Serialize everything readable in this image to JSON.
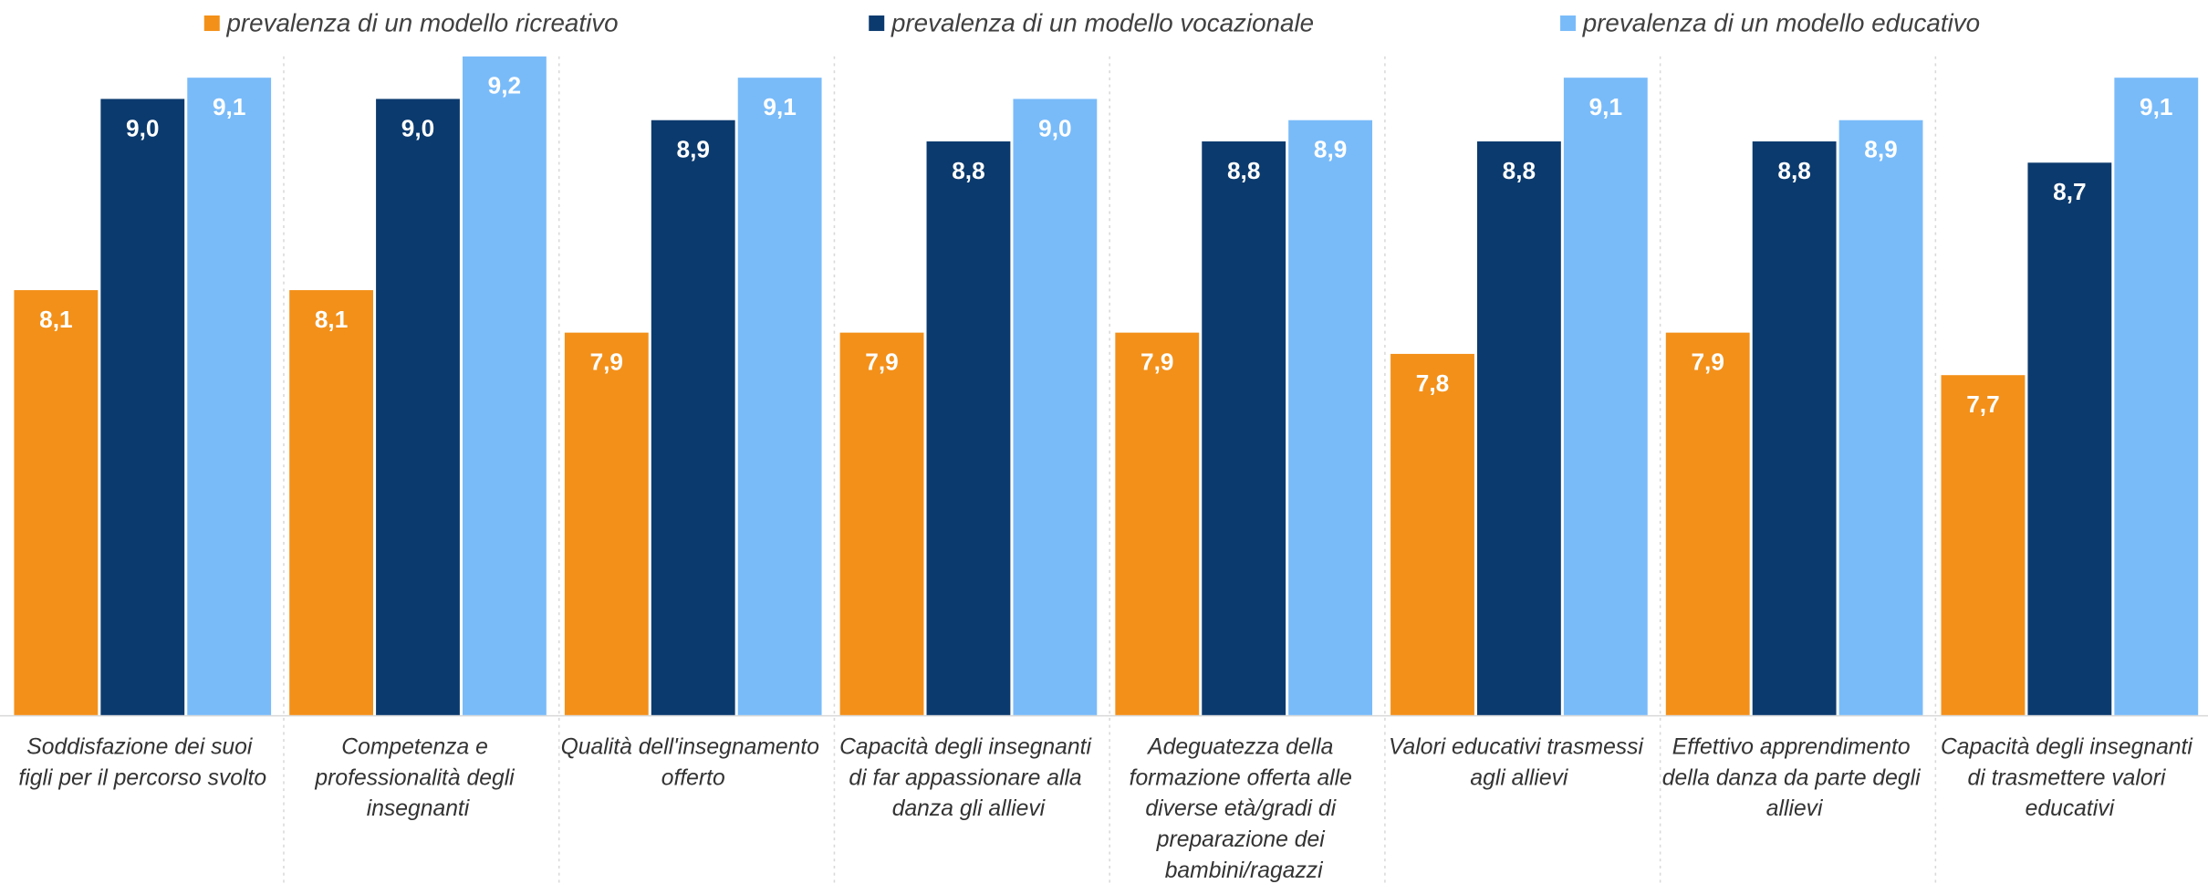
{
  "chart_data": {
    "type": "bar",
    "categories": [
      "Soddisfazione dei suoi figli per il percorso svolto",
      "Competenza e professionalità degli insegnanti",
      "Qualità dell'insegnamento offerto",
      "Capacità degli insegnanti di far appassionare alla danza gli allievi",
      "Adeguatezza della formazione offerta alle diverse età/gradi di preparazione dei bambini/ragazzi",
      "Valori educativi trasmessi agli allievi",
      "Effettivo apprendimento della danza da parte degli allievi",
      "Capacità degli insegnanti di trasmettere valori educativi"
    ],
    "series": [
      {
        "name": "prevalenza di un modello ricreativo",
        "color": "#F39019",
        "values": [
          8.1,
          8.1,
          7.9,
          7.9,
          7.9,
          7.8,
          7.9,
          7.7
        ],
        "value_labels": [
          "8,1",
          "8,1",
          "7,9",
          "7,9",
          "7,9",
          "7,8",
          "7,9",
          "7,7"
        ]
      },
      {
        "name": "prevalenza di un modello vocazionale",
        "color": "#0B3A6E",
        "values": [
          9.0,
          9.0,
          8.9,
          8.8,
          8.8,
          8.8,
          8.8,
          8.7
        ],
        "value_labels": [
          "9,0",
          "9,0",
          "8,9",
          "8,8",
          "8,8",
          "8,8",
          "8,8",
          "8,7"
        ]
      },
      {
        "name": "prevalenza di un modello educativo",
        "color": "#79BBF9",
        "values": [
          9.1,
          9.2,
          9.1,
          9.0,
          8.9,
          9.1,
          8.9,
          9.1
        ],
        "value_labels": [
          "9,1",
          "9,2",
          "9,1",
          "9,0",
          "8,9",
          "9,1",
          "8,9",
          "9,1"
        ]
      }
    ],
    "ylim": [
      6.1,
      9.3
    ],
    "legend": "top"
  }
}
